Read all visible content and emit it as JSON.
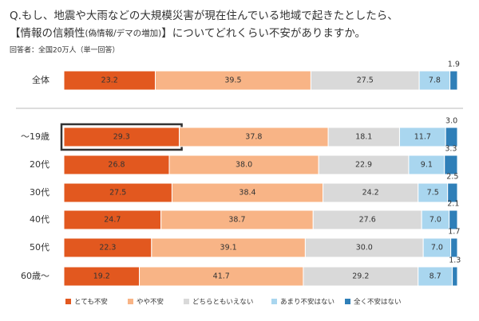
{
  "chart_data": {
    "type": "stacked_bar_100",
    "title": [
      "Q.もし、地震や大雨などの大規模災害が現在住んでいる地域で起きたとしたら、",
      "【情報の信頼性",
      "(偽情報/デマの増加)",
      "】についてどれくらい不安がありますか。"
    ],
    "subtitle": "回答者：全国20万人（単一回答）",
    "categories": [
      "全体",
      "～19歳",
      "20代",
      "30代",
      "40代",
      "50代",
      "60歳～"
    ],
    "series": [
      {
        "name": "とても不安",
        "color": "#e2581f",
        "values": [
          23.2,
          29.3,
          26.8,
          27.5,
          24.7,
          22.3,
          19.2
        ],
        "value_labels": [
          "23.2",
          "29.3",
          "26.8",
          "27.5",
          "24.7",
          "22.3",
          "19.2"
        ]
      },
      {
        "name": "やや不安",
        "color": "#f8b486",
        "values": [
          39.5,
          37.8,
          38.0,
          38.4,
          38.7,
          39.1,
          41.7
        ],
        "value_labels": [
          "39.5",
          "37.8",
          "38.0",
          "38.4",
          "38.7",
          "39.1",
          "41.7"
        ]
      },
      {
        "name": "どちらともいえない",
        "color": "#d9d9d9",
        "values": [
          27.5,
          18.1,
          22.9,
          24.2,
          27.6,
          30.0,
          29.2
        ],
        "value_labels": [
          "27.5",
          "18.1",
          "22.9",
          "24.2",
          "27.6",
          "30.0",
          "29.2"
        ]
      },
      {
        "name": "あまり不安はない",
        "color": "#a9d6ef",
        "values": [
          7.8,
          11.7,
          9.1,
          7.5,
          7.0,
          7.0,
          8.7
        ],
        "value_labels": [
          "7.8",
          "11.7",
          "9.1",
          "7.5",
          "7.0",
          "7.0",
          "8.7"
        ]
      },
      {
        "name": "全く不安はない",
        "color": "#2f7fb8",
        "values": [
          1.9,
          3.0,
          3.3,
          2.5,
          2.1,
          1.7,
          1.3
        ],
        "value_labels": [
          "1.9",
          "3.0",
          "3.3",
          "2.5",
          "2.1",
          "1.7",
          "1.3"
        ]
      }
    ]
  }
}
